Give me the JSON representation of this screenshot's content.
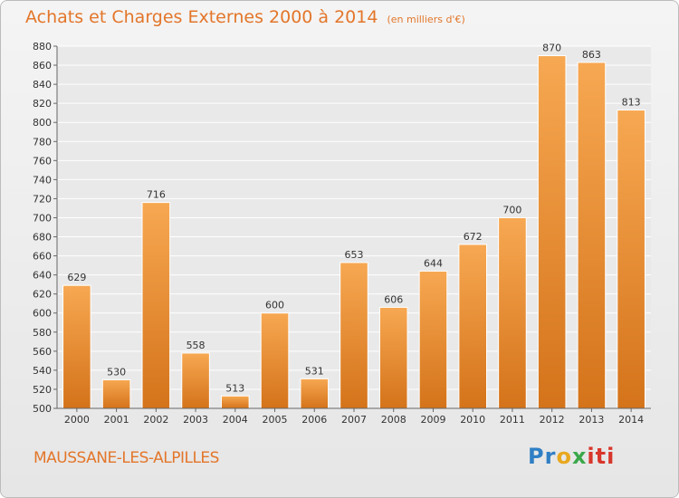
{
  "title": "Achats et Charges Externes 2000 à 2014",
  "unit": "(en milliers d'€)",
  "commune": "MAUSSANE-LES-ALPILLES",
  "logo": {
    "part1": "Pr",
    "part2": "o",
    "part3": "x",
    "part4": "iti"
  },
  "colors": {
    "bar_light": "#f5a14a",
    "bar_dark": "#d9781c",
    "title": "#e3762a",
    "grid": "#ffffff"
  },
  "chart_data": {
    "type": "bar",
    "title": "Achats et Charges Externes 2000 à 2014",
    "subtitle": "(en milliers d'€)",
    "xlabel": "",
    "ylabel": "",
    "ylim": [
      500,
      880
    ],
    "ytick_step": 20,
    "grid": true,
    "categories": [
      "2000",
      "2001",
      "2002",
      "2003",
      "2004",
      "2005",
      "2006",
      "2007",
      "2008",
      "2009",
      "2010",
      "2011",
      "2012",
      "2013",
      "2014"
    ],
    "values": [
      629,
      530,
      716,
      558,
      513,
      600,
      531,
      653,
      606,
      644,
      672,
      700,
      870,
      863,
      813
    ]
  }
}
